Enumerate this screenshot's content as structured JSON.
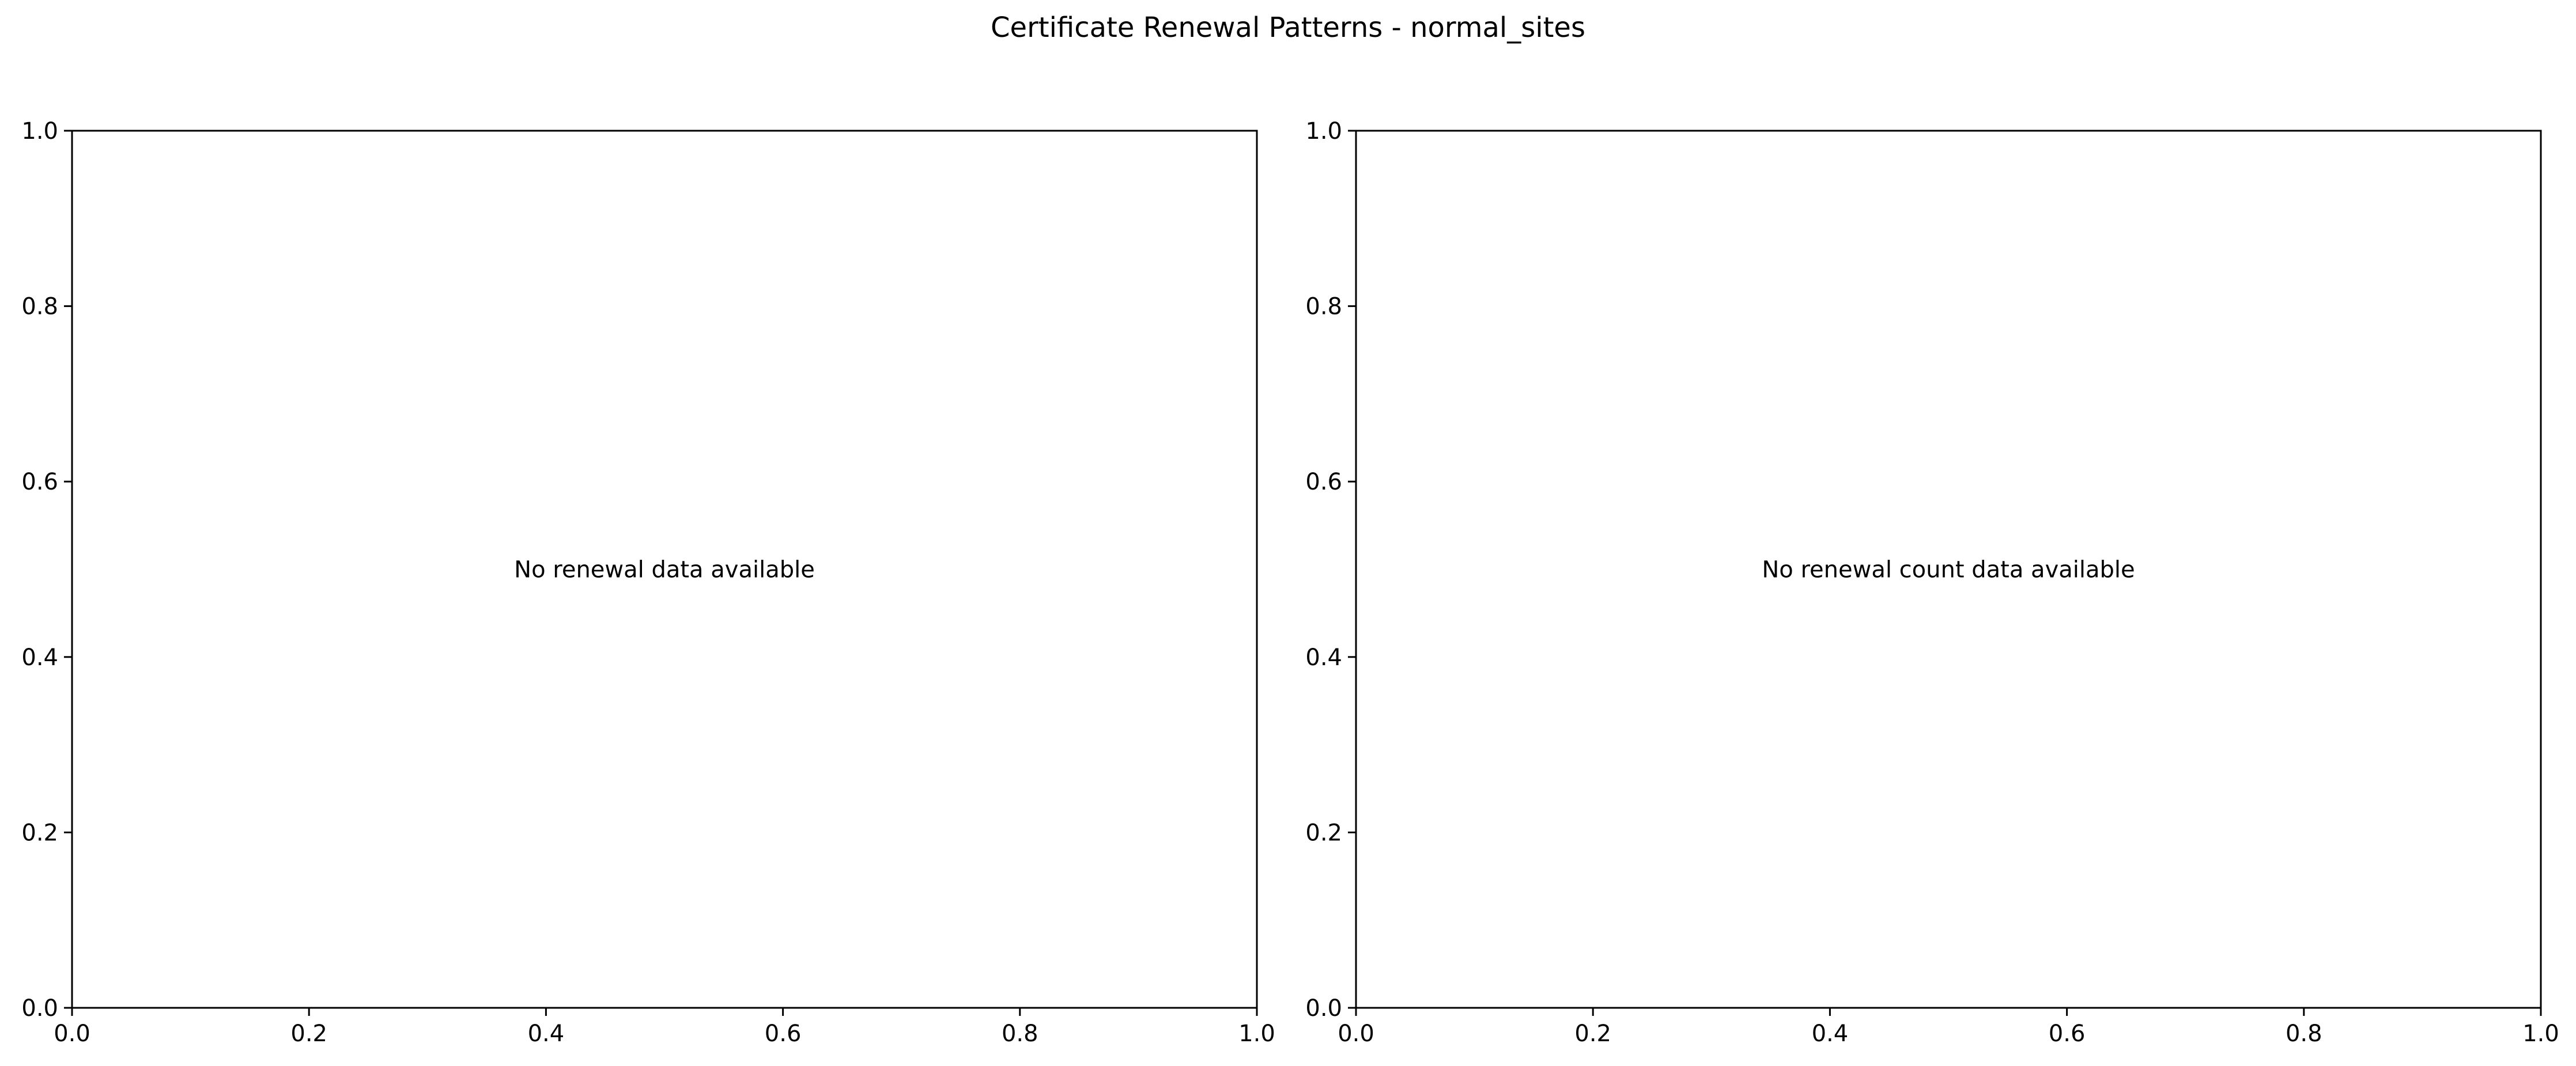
{
  "figure": {
    "title": "Certificate Renewal Patterns - normal_sites"
  },
  "chart_data": [
    {
      "type": "line",
      "title": "",
      "xlabel": "",
      "ylabel": "",
      "xlim": [
        0,
        1
      ],
      "ylim": [
        0,
        1
      ],
      "xticks": [
        0.0,
        0.2,
        0.4,
        0.6,
        0.8,
        1.0
      ],
      "yticks": [
        0.0,
        0.2,
        0.4,
        0.6,
        0.8,
        1.0
      ],
      "xtick_labels": [
        "0.0",
        "0.2",
        "0.4",
        "0.6",
        "0.8",
        "1.0"
      ],
      "ytick_labels": [
        "0.0",
        "0.2",
        "0.4",
        "0.6",
        "0.8",
        "1.0"
      ],
      "grid": false,
      "series": [],
      "annotations": [
        {
          "text": "No renewal data available",
          "x": 0.5,
          "y": 0.5
        }
      ]
    },
    {
      "type": "bar",
      "title": "",
      "xlabel": "",
      "ylabel": "",
      "xlim": [
        0,
        1
      ],
      "ylim": [
        0,
        1
      ],
      "xticks": [
        0.0,
        0.2,
        0.4,
        0.6,
        0.8,
        1.0
      ],
      "yticks": [
        0.0,
        0.2,
        0.4,
        0.6,
        0.8,
        1.0
      ],
      "xtick_labels": [
        "0.0",
        "0.2",
        "0.4",
        "0.6",
        "0.8",
        "1.0"
      ],
      "ytick_labels": [
        "0.0",
        "0.2",
        "0.4",
        "0.6",
        "0.8",
        "1.0"
      ],
      "grid": false,
      "series": [],
      "annotations": [
        {
          "text": "No renewal count data available",
          "x": 0.5,
          "y": 0.5
        }
      ]
    }
  ]
}
